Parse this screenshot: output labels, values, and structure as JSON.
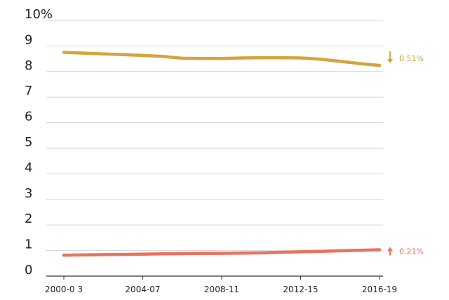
{
  "chart_data": {
    "type": "line",
    "title": "",
    "xlabel": "",
    "ylabel": "",
    "categories": [
      "2000-03",
      "2001-04",
      "2002-05",
      "2003-06",
      "2004-07",
      "2005-08",
      "2006-09",
      "2007-10",
      "2008-11",
      "2009-12",
      "2010-13",
      "2011-14",
      "2012-15",
      "2013-16",
      "2014-17",
      "2015-18",
      "2016-19"
    ],
    "x_tick_labels": [
      "2000-0 3",
      "2004-07",
      "2008-11",
      "2012-15",
      "2016-19"
    ],
    "y_tick_labels": [
      "0",
      "1",
      "2",
      "3",
      "4",
      "5",
      "6",
      "7",
      "8",
      "9",
      "10%"
    ],
    "ylim": [
      0,
      10
    ],
    "grid": true,
    "series": [
      {
        "color": "#d6a43c",
        "values": [
          8.75,
          8.72,
          8.69,
          8.66,
          8.63,
          8.59,
          8.52,
          8.51,
          8.51,
          8.53,
          8.54,
          8.54,
          8.53,
          8.48,
          8.4,
          8.31,
          8.24
        ],
        "change_label": "0.51%",
        "change_direction": "down"
      },
      {
        "color": "#e8735f",
        "values": [
          0.82,
          0.83,
          0.84,
          0.85,
          0.86,
          0.87,
          0.88,
          0.89,
          0.89,
          0.9,
          0.91,
          0.93,
          0.95,
          0.97,
          0.99,
          1.01,
          1.03
        ],
        "change_label": "0.21%",
        "change_direction": "up"
      }
    ]
  }
}
